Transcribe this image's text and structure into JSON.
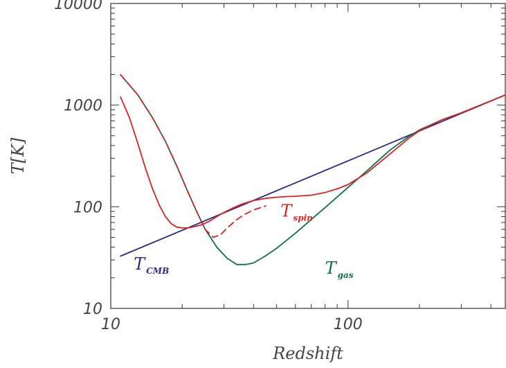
{
  "chart_data": {
    "type": "line",
    "xlabel": "Redshift",
    "ylabel": "T[K]",
    "xscale": "log",
    "yscale": "log",
    "xlim": [
      10,
      460
    ],
    "ylim": [
      10,
      10000
    ],
    "xticks": [
      10,
      100
    ],
    "xtick_labels": [
      "10",
      "100"
    ],
    "yticks": [
      10,
      100,
      1000,
      10000
    ],
    "ytick_labels": [
      "10",
      "100",
      "1000",
      "10000"
    ],
    "grid": false,
    "series": [
      {
        "key": "cmb",
        "color": "#2b2b8c",
        "style": "solid",
        "x": [
          11,
          460
        ],
        "y": [
          32.7,
          1256
        ]
      },
      {
        "key": "gas",
        "color": "#0b6e4f",
        "style": "solid",
        "x": [
          11,
          13,
          15,
          17,
          19,
          21,
          23,
          25,
          28,
          31,
          34,
          37,
          40,
          45,
          50,
          60,
          70,
          80,
          100,
          120,
          150,
          180,
          200,
          250,
          300,
          400,
          460
        ],
        "y": [
          1990,
          1260,
          750,
          440,
          250,
          145,
          90,
          60,
          40,
          31,
          27,
          27,
          28,
          33,
          39,
          55,
          75,
          98,
          155,
          225,
          360,
          490,
          570,
          720,
          840,
          1100,
          1256
        ]
      },
      {
        "key": "spin-dashed",
        "color": "#e02020",
        "style": "dashed",
        "x": [
          11,
          13,
          15,
          17,
          19,
          21,
          23,
          25,
          27,
          29,
          31,
          34,
          37,
          40,
          45
        ],
        "y": [
          1990,
          1260,
          750,
          440,
          250,
          145,
          90,
          60,
          50,
          53,
          62,
          75,
          85,
          93,
          102
        ]
      },
      {
        "key": "spin",
        "color": "#e02020",
        "style": "solid",
        "x": [
          11,
          12,
          13,
          14,
          15,
          16,
          17,
          18,
          19,
          20,
          21,
          22,
          24,
          26,
          28,
          30,
          33,
          36,
          40,
          45,
          50,
          55,
          60,
          70,
          80,
          90,
          100,
          120,
          150,
          180,
          200,
          250,
          300,
          400,
          460
        ],
        "y": [
          1200,
          750,
          420,
          240,
          150,
          104,
          80,
          68,
          63,
          62,
          62,
          63,
          66,
          72,
          80,
          88,
          98,
          107,
          115,
          121,
          124,
          126,
          127,
          130,
          138,
          150,
          165,
          215,
          330,
          470,
          560,
          720,
          840,
          1100,
          1256
        ]
      }
    ],
    "annotations": [
      {
        "main": "T",
        "sub": "CMB",
        "color": "#2b2b8c",
        "x": 12.5,
        "y": 24
      },
      {
        "main": "T",
        "sub": "spin",
        "color": "#e02020",
        "x": 52,
        "y": 80
      },
      {
        "main": "T",
        "sub": "gas",
        "color": "#0b6e4f",
        "x": 80,
        "y": 22
      }
    ]
  }
}
